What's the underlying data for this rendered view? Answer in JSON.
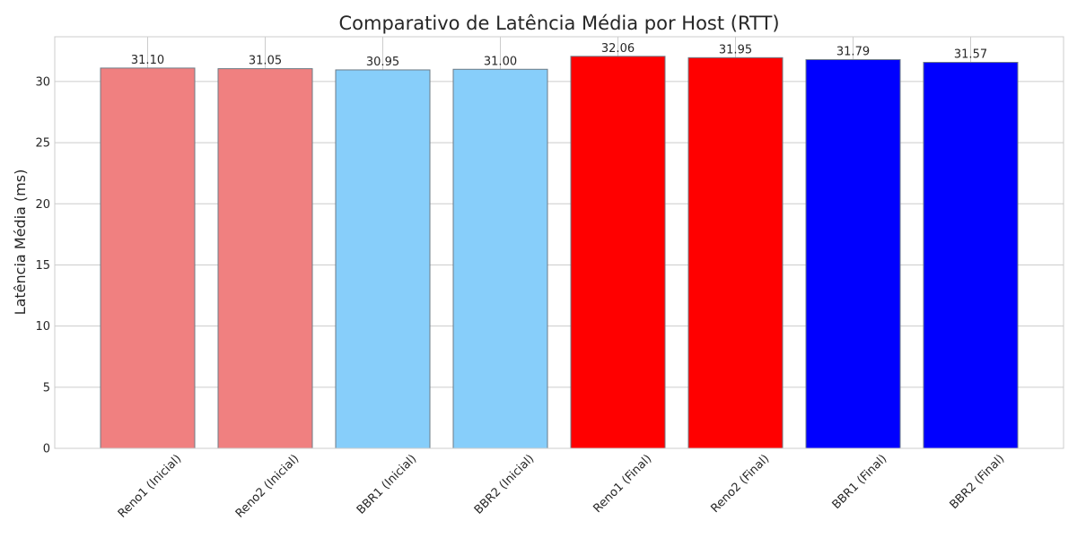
{
  "chart_data": {
    "type": "bar",
    "title": "Comparativo de Latência Média por Host (RTT)",
    "xlabel": "",
    "ylabel": "Latência Média (ms)",
    "categories": [
      "Reno1 (Inicial)",
      "Reno2 (Inicial)",
      "BBR1 (Inicial)",
      "BBR2 (Inicial)",
      "Reno1 (Final)",
      "Reno2 (Final)",
      "BBR1 (Final)",
      "BBR2 (Final)"
    ],
    "values": [
      31.1,
      31.05,
      30.95,
      31.0,
      32.06,
      31.95,
      31.79,
      31.57
    ],
    "value_labels": [
      "31.10",
      "31.05",
      "30.95",
      "31.00",
      "32.06",
      "31.95",
      "31.79",
      "31.57"
    ],
    "bar_colors": [
      "#f08080",
      "#f08080",
      "#87cefa",
      "#87cefa",
      "#ff0000",
      "#ff0000",
      "#0000ff",
      "#0000ff"
    ],
    "y_ticks": [
      0,
      5,
      10,
      15,
      20,
      25,
      30
    ],
    "ylim": [
      0,
      33.66
    ],
    "grid": true,
    "legend": "none"
  }
}
